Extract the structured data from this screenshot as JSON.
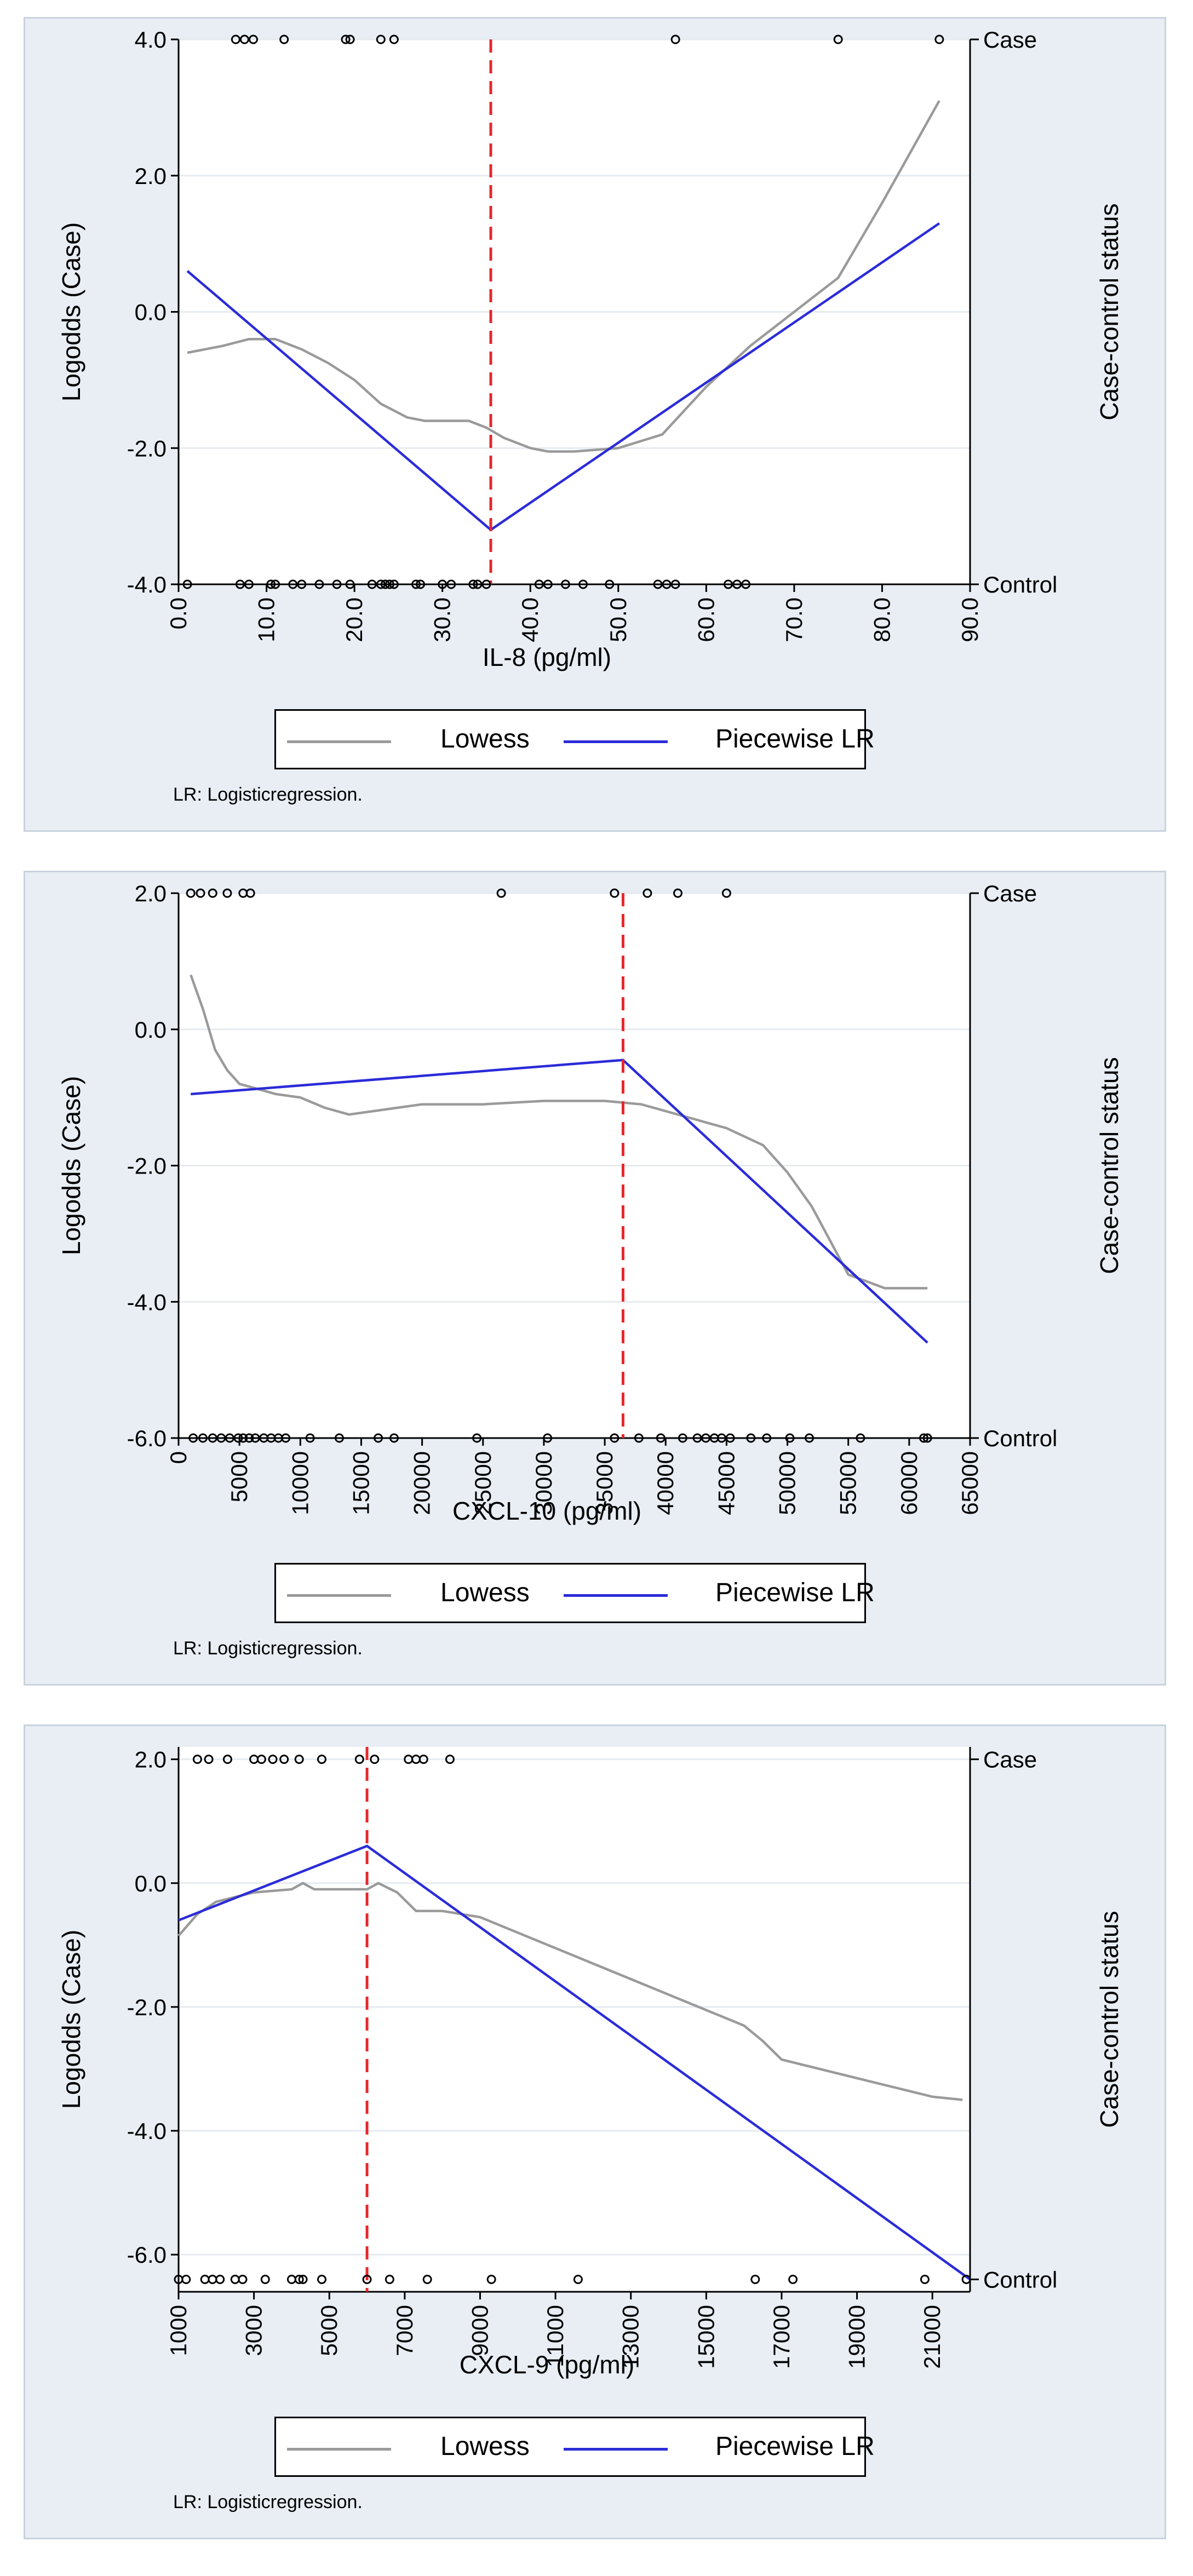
{
  "chart_data": [
    {
      "type": "line",
      "xlabel": "IL-8 (pg/ml)",
      "ylabel": "Logodds (Case)",
      "ylabel_right": "Case-control status",
      "right_ticks": [
        "Case",
        "Control"
      ],
      "xlim": [
        0,
        90
      ],
      "ylim": [
        -4,
        4
      ],
      "xticks": [
        0,
        10,
        20,
        30,
        40,
        50,
        60,
        70,
        80,
        90
      ],
      "xtick_labels": [
        "0.0",
        "10.0",
        "20.0",
        "30.0",
        "40.0",
        "50.0",
        "60.0",
        "70.0",
        "80.0",
        "90.0"
      ],
      "yticks": [
        -4,
        -2,
        0,
        2,
        4
      ],
      "ytick_labels": [
        "-4.0",
        "-2.0",
        "0.0",
        "2.0",
        "4.0"
      ],
      "cutpoint": 35.5,
      "case_y": 4,
      "control_y": -4,
      "series": [
        {
          "name": "Lowess",
          "x": [
            1,
            5,
            8,
            11,
            14,
            17,
            20,
            23,
            26,
            28,
            30,
            33,
            35,
            37,
            40,
            42,
            45,
            50,
            55,
            60,
            65,
            70,
            75,
            80,
            86.5
          ],
          "y": [
            -0.6,
            -0.5,
            -0.4,
            -0.4,
            -0.55,
            -0.75,
            -1.0,
            -1.35,
            -1.55,
            -1.6,
            -1.6,
            -1.6,
            -1.7,
            -1.85,
            -2.0,
            -2.05,
            -2.05,
            -2.0,
            -1.8,
            -1.1,
            -0.5,
            0.0,
            0.5,
            1.6,
            3.1
          ]
        },
        {
          "name": "Piecewise LR",
          "x": [
            1,
            35.5,
            86.5
          ],
          "y": [
            0.6,
            -3.2,
            1.3
          ]
        }
      ],
      "cases": [
        6.5,
        7.5,
        8.5,
        12,
        19,
        19.5,
        23,
        24.5,
        56.5,
        75,
        86.5
      ],
      "controls": [
        1,
        7,
        8,
        10.5,
        11,
        13,
        14,
        16,
        18,
        19.5,
        22,
        23,
        23.5,
        24,
        24.5,
        27,
        27.5,
        30,
        31,
        33.5,
        34,
        35,
        41,
        42,
        44,
        46,
        49,
        54.5,
        55.5,
        56.5,
        62.5,
        63.5,
        64.5
      ],
      "legend": {
        "lowess": "Lowess",
        "plr": "Piecewise LR"
      },
      "note": "LR: Logisticregression."
    },
    {
      "type": "line",
      "xlabel": "CXCL-10 (pg/ml)",
      "ylabel": "Logodds (Case)",
      "ylabel_right": "Case-control status",
      "right_ticks": [
        "Case",
        "Control"
      ],
      "xlim": [
        0,
        65000
      ],
      "ylim": [
        -6,
        2
      ],
      "xticks": [
        0,
        5000,
        10000,
        15000,
        20000,
        25000,
        30000,
        35000,
        40000,
        45000,
        50000,
        55000,
        60000,
        65000
      ],
      "xtick_labels": [
        "0",
        "5000",
        "10000",
        "15000",
        "20000",
        "25000",
        "30000",
        "35000",
        "40000",
        "45000",
        "50000",
        "55000",
        "60000",
        "65000"
      ],
      "yticks": [
        -6,
        -4,
        -2,
        0,
        2
      ],
      "ytick_labels": [
        "-6.0",
        "-4.0",
        "-2.0",
        "0.0",
        "2.0"
      ],
      "cutpoint": 36500,
      "case_y": 2,
      "control_y": -6,
      "series": [
        {
          "name": "Lowess",
          "x": [
            1000,
            2000,
            3000,
            4000,
            5000,
            6000,
            7000,
            8000,
            10000,
            12000,
            14000,
            16000,
            18000,
            20000,
            25000,
            30000,
            35000,
            38000,
            40000,
            43000,
            45000,
            48000,
            50000,
            52000,
            55000,
            58000,
            61500
          ],
          "y": [
            0.8,
            0.3,
            -0.3,
            -0.6,
            -0.8,
            -0.85,
            -0.9,
            -0.95,
            -1.0,
            -1.15,
            -1.25,
            -1.2,
            -1.15,
            -1.1,
            -1.1,
            -1.05,
            -1.05,
            -1.1,
            -1.2,
            -1.35,
            -1.45,
            -1.7,
            -2.1,
            -2.6,
            -3.6,
            -3.8,
            -3.8
          ]
        },
        {
          "name": "Piecewise LR",
          "x": [
            1000,
            36500,
            61500
          ],
          "y": [
            -0.95,
            -0.45,
            -4.6
          ]
        }
      ],
      "cases": [
        1000,
        1800,
        2800,
        4000,
        5300,
        5900,
        26500,
        35800,
        38500,
        41000,
        45000
      ],
      "controls": [
        1200,
        2000,
        2800,
        3500,
        4200,
        4900,
        5300,
        5800,
        6300,
        7000,
        7600,
        8200,
        8800,
        10800,
        13200,
        16400,
        17700,
        24500,
        30300,
        35800,
        37800,
        39600,
        41400,
        42600,
        43300,
        44000,
        44600,
        45300,
        47000,
        48300,
        50200,
        51800,
        56000,
        61200,
        61500
      ],
      "legend": {
        "lowess": "Lowess",
        "plr": "Piecewise LR"
      },
      "note": "LR: Logisticregression."
    },
    {
      "type": "line",
      "xlabel": "CXCL-9 (pg/ml)",
      "ylabel": "Logodds (Case)",
      "ylabel_right": "Case-control status",
      "right_ticks": [
        "Case",
        "Control"
      ],
      "xlim": [
        1000,
        22000
      ],
      "ylim": [
        -6.6,
        2.2
      ],
      "xticks": [
        1000,
        3000,
        5000,
        7000,
        9000,
        11000,
        13000,
        15000,
        17000,
        19000,
        21000
      ],
      "xtick_labels": [
        "1000",
        "3000",
        "5000",
        "7000",
        "9000",
        "11000",
        "13000",
        "15000",
        "17000",
        "19000",
        "21000"
      ],
      "yticks": [
        -6,
        -4,
        -2,
        0,
        2
      ],
      "ytick_labels": [
        "-6.0",
        "-4.0",
        "-2.0",
        "0.0",
        "2.0"
      ],
      "cutpoint": 6000,
      "case_y": 2,
      "control_y": -6.4,
      "series": [
        {
          "name": "Lowess",
          "x": [
            1000,
            1500,
            2000,
            3000,
            4000,
            4300,
            4600,
            5000,
            6000,
            6300,
            6800,
            7300,
            8000,
            9000,
            10000,
            11000,
            12000,
            13000,
            14000,
            15000,
            16000,
            16500,
            17000,
            18000,
            19000,
            20000,
            21000,
            21800
          ],
          "y": [
            -0.85,
            -0.5,
            -0.3,
            -0.15,
            -0.1,
            0.0,
            -0.1,
            -0.1,
            -0.1,
            0.0,
            -0.15,
            -0.45,
            -0.45,
            -0.55,
            -0.8,
            -1.05,
            -1.3,
            -1.55,
            -1.8,
            -2.05,
            -2.3,
            -2.55,
            -2.85,
            -3.0,
            -3.15,
            -3.3,
            -3.45,
            -3.5
          ]
        },
        {
          "name": "Piecewise LR",
          "x": [
            1000,
            6000,
            22000
          ],
          "y": [
            -0.6,
            0.6,
            -6.4
          ]
        }
      ],
      "cases": [
        1500,
        1800,
        2300,
        3000,
        3200,
        3500,
        3800,
        4200,
        4800,
        5800,
        6200,
        7100,
        7300,
        7500,
        8200
      ],
      "controls": [
        1000,
        1200,
        1700,
        1900,
        2100,
        2500,
        2700,
        3300,
        4000,
        4200,
        4300,
        4800,
        6000,
        6600,
        7600,
        9300,
        11600,
        16300,
        17300,
        20800,
        21900
      ],
      "legend": {
        "lowess": "Lowess",
        "plr": "Piecewise LR"
      },
      "note": "LR: Logisticregression."
    }
  ]
}
